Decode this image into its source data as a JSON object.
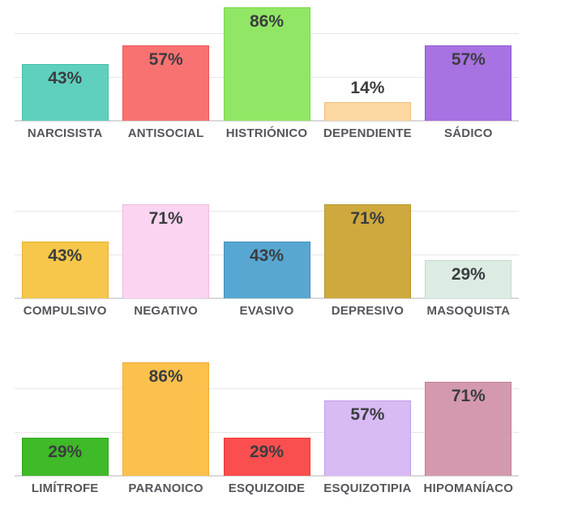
{
  "style": {
    "background": "#ffffff",
    "value_label_color": "#3b3d40",
    "category_label_color": "#54565b",
    "gridline_color": "#e7e7e7",
    "baseline_color": "#d9d9d9"
  },
  "chart_data": [
    {
      "type": "bar",
      "title": "",
      "xlabel": "",
      "ylabel": "",
      "ylim": [
        0,
        100
      ],
      "grid": true,
      "legend": false,
      "value_suffix": "%",
      "categories": [
        "NARCISISTA",
        "ANTISOCIAL",
        "HISTRIÓNICO",
        "DEPENDIENTE",
        "SÁDICO"
      ],
      "values": [
        43,
        57,
        86,
        14,
        57
      ],
      "value_labels": [
        "43%",
        "57%",
        "86%",
        "14%",
        "57%"
      ],
      "bar_colors": [
        "#5fd0be",
        "#f97272",
        "#91e765",
        "#fbd7a1",
        "#a772e2"
      ],
      "bar_borders": [
        "#45bfab",
        "#ee5454",
        "#74d943",
        "#efbf7d",
        "#9256d1"
      ]
    },
    {
      "type": "bar",
      "title": "",
      "xlabel": "",
      "ylabel": "",
      "ylim": [
        0,
        100
      ],
      "grid": true,
      "legend": false,
      "value_suffix": "%",
      "categories": [
        "COMPULSIVO",
        "NEGATIVO",
        "EVASIVO",
        "DEPRESIVO",
        "MASOQUISTA"
      ],
      "values": [
        43,
        71,
        43,
        71,
        29
      ],
      "value_labels": [
        "43%",
        "71%",
        "43%",
        "71%",
        "29%"
      ],
      "bar_colors": [
        "#f6c74a",
        "#fad4f0",
        "#57a7d2",
        "#cfa93d",
        "#dcece2"
      ],
      "bar_borders": [
        "#e9b32e",
        "#f2b8e2",
        "#4191c0",
        "#b7942c",
        "#c1dbca"
      ]
    },
    {
      "type": "bar",
      "title": "",
      "xlabel": "",
      "ylabel": "",
      "ylim": [
        0,
        100
      ],
      "grid": true,
      "legend": false,
      "value_suffix": "%",
      "categories": [
        "LIMÍTROFE",
        "PARANOICO",
        "ESQUIZOIDE",
        "ESQUIZOTIPIA",
        "HIPOMANÍACO"
      ],
      "values": [
        29,
        86,
        29,
        57,
        71
      ],
      "value_labels": [
        "29%",
        "86%",
        "29%",
        "57%",
        "71%"
      ],
      "bar_colors": [
        "#3fba28",
        "#fcc04d",
        "#fb4e4e",
        "#d8baf4",
        "#d499ae"
      ],
      "bar_borders": [
        "#2fa81a",
        "#efac31",
        "#ee3434",
        "#c29ee8",
        "#c18399"
      ]
    }
  ]
}
